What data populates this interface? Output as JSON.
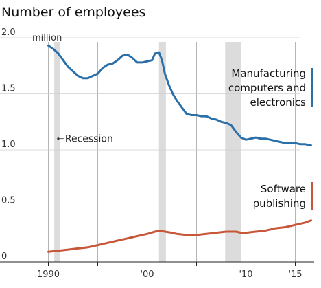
{
  "chart_data": {
    "type": "line",
    "title": "Number of employees",
    "y_unit_label": "million",
    "ylim": [
      0,
      2.0
    ],
    "xlim": [
      1989,
      2016.8
    ],
    "y_ticks": [
      {
        "value": 0,
        "label": "0"
      },
      {
        "value": 0.5,
        "label": "0.5"
      },
      {
        "value": 1.0,
        "label": "1.0"
      },
      {
        "value": 1.5,
        "label": "1.5"
      },
      {
        "value": 2.0,
        "label": "2.0"
      }
    ],
    "x_ticks": [
      {
        "value": 1990,
        "label": "1990"
      },
      {
        "value": 1995,
        "label": ""
      },
      {
        "value": 2000,
        "label": "'00"
      },
      {
        "value": 2005,
        "label": ""
      },
      {
        "value": 2010,
        "label": "'10"
      },
      {
        "value": 2015,
        "label": "'15"
      }
    ],
    "grid": "vertical",
    "recessions": [
      [
        1990.6,
        1991.2
      ],
      [
        2001.2,
        2001.9
      ],
      [
        2007.9,
        2009.5
      ]
    ],
    "annotation": {
      "text": "Recession",
      "x": 1991.0,
      "y": 1.1
    },
    "series": [
      {
        "name": "Manufacturing computers and electronics",
        "label_lines": [
          "Manufacturing",
          "computers and",
          "electronics"
        ],
        "color": "#2a6fa8",
        "points": [
          [
            1990.0,
            1.93
          ],
          [
            1990.5,
            1.9
          ],
          [
            1991.0,
            1.86
          ],
          [
            1991.5,
            1.8
          ],
          [
            1992.0,
            1.74
          ],
          [
            1992.5,
            1.7
          ],
          [
            1993.0,
            1.66
          ],
          [
            1993.5,
            1.64
          ],
          [
            1994.0,
            1.64
          ],
          [
            1994.5,
            1.66
          ],
          [
            1995.0,
            1.68
          ],
          [
            1995.5,
            1.73
          ],
          [
            1996.0,
            1.76
          ],
          [
            1996.5,
            1.77
          ],
          [
            1997.0,
            1.8
          ],
          [
            1997.5,
            1.84
          ],
          [
            1998.0,
            1.85
          ],
          [
            1998.5,
            1.82
          ],
          [
            1999.0,
            1.78
          ],
          [
            1999.5,
            1.78
          ],
          [
            2000.0,
            1.79
          ],
          [
            2000.5,
            1.8
          ],
          [
            2000.8,
            1.86
          ],
          [
            2001.2,
            1.87
          ],
          [
            2001.5,
            1.8
          ],
          [
            2001.8,
            1.68
          ],
          [
            2002.2,
            1.58
          ],
          [
            2002.6,
            1.5
          ],
          [
            2003.0,
            1.44
          ],
          [
            2003.5,
            1.38
          ],
          [
            2004.0,
            1.32
          ],
          [
            2004.5,
            1.31
          ],
          [
            2005.0,
            1.31
          ],
          [
            2005.5,
            1.3
          ],
          [
            2006.0,
            1.3
          ],
          [
            2006.5,
            1.28
          ],
          [
            2007.0,
            1.27
          ],
          [
            2007.5,
            1.25
          ],
          [
            2008.0,
            1.24
          ],
          [
            2008.5,
            1.22
          ],
          [
            2009.0,
            1.16
          ],
          [
            2009.5,
            1.11
          ],
          [
            2010.0,
            1.09
          ],
          [
            2010.5,
            1.1
          ],
          [
            2011.0,
            1.11
          ],
          [
            2011.5,
            1.1
          ],
          [
            2012.0,
            1.1
          ],
          [
            2012.5,
            1.09
          ],
          [
            2013.0,
            1.08
          ],
          [
            2013.5,
            1.07
          ],
          [
            2014.0,
            1.06
          ],
          [
            2014.5,
            1.06
          ],
          [
            2015.0,
            1.06
          ],
          [
            2015.5,
            1.05
          ],
          [
            2016.0,
            1.05
          ],
          [
            2016.6,
            1.04
          ]
        ]
      },
      {
        "name": "Software publishing",
        "label_lines": [
          "Software",
          "publishing"
        ],
        "color": "#c8573a",
        "points": [
          [
            1990.0,
            0.09
          ],
          [
            1991.0,
            0.1
          ],
          [
            1992.0,
            0.11
          ],
          [
            1993.0,
            0.12
          ],
          [
            1994.0,
            0.13
          ],
          [
            1995.0,
            0.15
          ],
          [
            1996.0,
            0.17
          ],
          [
            1997.0,
            0.19
          ],
          [
            1998.0,
            0.21
          ],
          [
            1999.0,
            0.23
          ],
          [
            2000.0,
            0.25
          ],
          [
            2000.8,
            0.27
          ],
          [
            2001.3,
            0.28
          ],
          [
            2001.8,
            0.27
          ],
          [
            2002.5,
            0.26
          ],
          [
            2003.0,
            0.25
          ],
          [
            2004.0,
            0.24
          ],
          [
            2005.0,
            0.24
          ],
          [
            2006.0,
            0.25
          ],
          [
            2007.0,
            0.26
          ],
          [
            2008.0,
            0.27
          ],
          [
            2008.5,
            0.27
          ],
          [
            2009.0,
            0.27
          ],
          [
            2009.5,
            0.26
          ],
          [
            2010.0,
            0.26
          ],
          [
            2011.0,
            0.27
          ],
          [
            2012.0,
            0.28
          ],
          [
            2013.0,
            0.3
          ],
          [
            2014.0,
            0.31
          ],
          [
            2015.0,
            0.33
          ],
          [
            2016.0,
            0.35
          ],
          [
            2016.6,
            0.37
          ]
        ]
      }
    ]
  }
}
